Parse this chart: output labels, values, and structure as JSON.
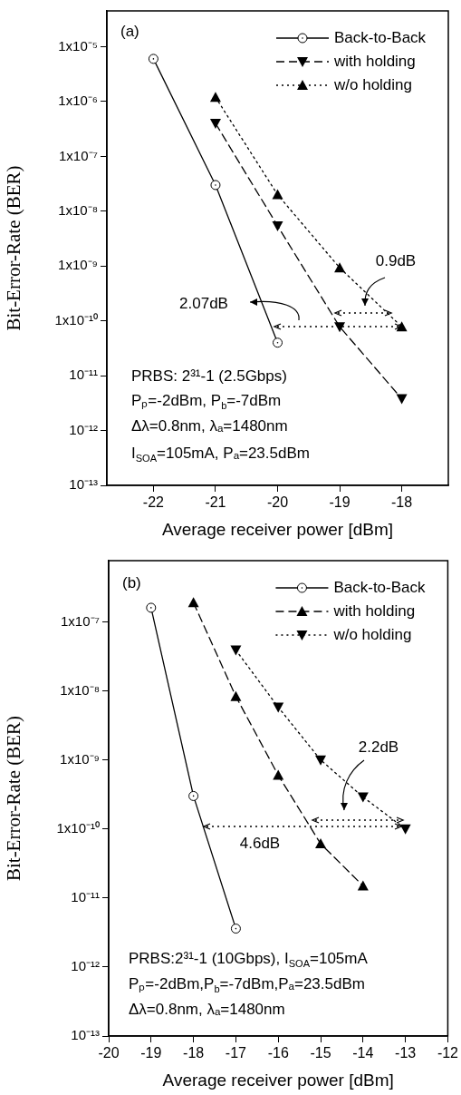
{
  "chart_data": [
    {
      "type": "line",
      "xlabel": "Average receiver power [dBm]",
      "ylabel": "Bit-Error-Rate (BER)",
      "log": "y",
      "grid": false,
      "legend": "top right",
      "xlim": [
        -22.75,
        -17.25
      ],
      "xticks": [
        -22,
        -21,
        -20,
        -19,
        -18
      ],
      "ylim": [
        1e-13,
        4.5e-05
      ],
      "yticks": [
        {
          "value": 1e-05,
          "label": "1x10⁻⁵"
        },
        {
          "value": 1e-06,
          "label": "1x10⁻⁶"
        },
        {
          "value": 1e-07,
          "label": "1x10⁻⁷"
        },
        {
          "value": 1e-08,
          "label": "1x10⁻⁸"
        },
        {
          "value": 1e-09,
          "label": "1x10⁻⁹"
        },
        {
          "value": 1e-10,
          "label": "1x10⁻¹⁰"
        },
        {
          "value": 1e-11,
          "label": "10⁻¹¹"
        },
        {
          "value": 1e-12,
          "label": "10⁻¹²"
        },
        {
          "value": 1e-13,
          "label": "10⁻¹³"
        }
      ],
      "series": [
        {
          "name": "Back-to-Back",
          "color": "#000000",
          "marker": "circle",
          "line_style": "solid",
          "x": [
            -22,
            -21,
            -20
          ],
          "values": [
            6e-06,
            3e-08,
            4e-11
          ]
        },
        {
          "name": "with holding",
          "color": "#000000",
          "marker": "triangle-down",
          "line_style": "dashed",
          "x": [
            -21,
            -20,
            -19,
            -18
          ],
          "values": [
            4e-07,
            5.4e-09,
            7.8e-11,
            3.8e-12
          ]
        },
        {
          "name": "w/o holding",
          "color": "#000000",
          "marker": "triangle",
          "line_style": "dotted",
          "x": [
            -21,
            -20,
            -19,
            -18
          ],
          "values": [
            1.2e-06,
            2e-08,
            9.3e-10,
            7.8e-11
          ]
        }
      ],
      "annotations": [
        "(a)",
        "PRBS: 2³¹-1 (2.5Gbps)",
        "Pₚ=-2dBm, P$_{b}$=-7dBm",
        "Δλ=0.8nm, λₐ=1480nm",
        "I$_{SOA}$=105mA, Pₐ=23.5dBm",
        "2.07dB",
        "0.9dB"
      ]
    },
    {
      "type": "line",
      "xlabel": "Average receiver power [dBm]",
      "ylabel": "Bit-Error-Rate (BER)",
      "log": "y",
      "grid": false,
      "legend": "top right",
      "xlim": [
        -20,
        -12
      ],
      "xticks": [
        -20,
        -19,
        -18,
        -17,
        -16,
        -15,
        -14,
        -13,
        -12
      ],
      "ylim": [
        1e-13,
        7.7e-07
      ],
      "yticks": [
        {
          "value": 1e-07,
          "label": "1x10⁻⁷"
        },
        {
          "value": 1e-08,
          "label": "1x10⁻⁸"
        },
        {
          "value": 1e-09,
          "label": "1x10⁻⁹"
        },
        {
          "value": 1e-10,
          "label": "1x10⁻¹⁰"
        },
        {
          "value": 1e-11,
          "label": "10⁻¹¹"
        },
        {
          "value": 1e-12,
          "label": "10⁻¹²"
        },
        {
          "value": 1e-13,
          "label": "10⁻¹³"
        }
      ],
      "series": [
        {
          "name": "Back-to-Back",
          "color": "#000000",
          "marker": "circle",
          "line_style": "solid",
          "x": [
            -19,
            -18,
            -17
          ],
          "values": [
            1.6e-07,
            3e-10,
            3.6e-12
          ]
        },
        {
          "name": "with holding",
          "color": "#000000",
          "marker": "triangle",
          "line_style": "dashed",
          "x": [
            -18,
            -17,
            -16,
            -15,
            -14
          ],
          "values": [
            1.9e-07,
            8.3e-09,
            6e-10,
            6.1e-11,
            1.5e-11
          ]
        },
        {
          "name": "w/o holding",
          "color": "#000000",
          "marker": "triangle-down",
          "line_style": "dotted",
          "x": [
            -17,
            -16,
            -15,
            -14,
            -13
          ],
          "values": [
            3.9e-08,
            5.8e-09,
            1e-09,
            2.9e-10,
            1e-10
          ]
        }
      ],
      "annotations": [
        "(b)",
        "PRBS:2³¹-1 (10Gbps), I$_{SOA}$=105mA",
        "Pₚ=-2dBm,P$_{b}$=-7dBm,Pₐ=23.5dBm",
        "Δλ=0.8nm, λₐ=1480nm",
        "4.6dB",
        "2.2dB"
      ]
    }
  ]
}
